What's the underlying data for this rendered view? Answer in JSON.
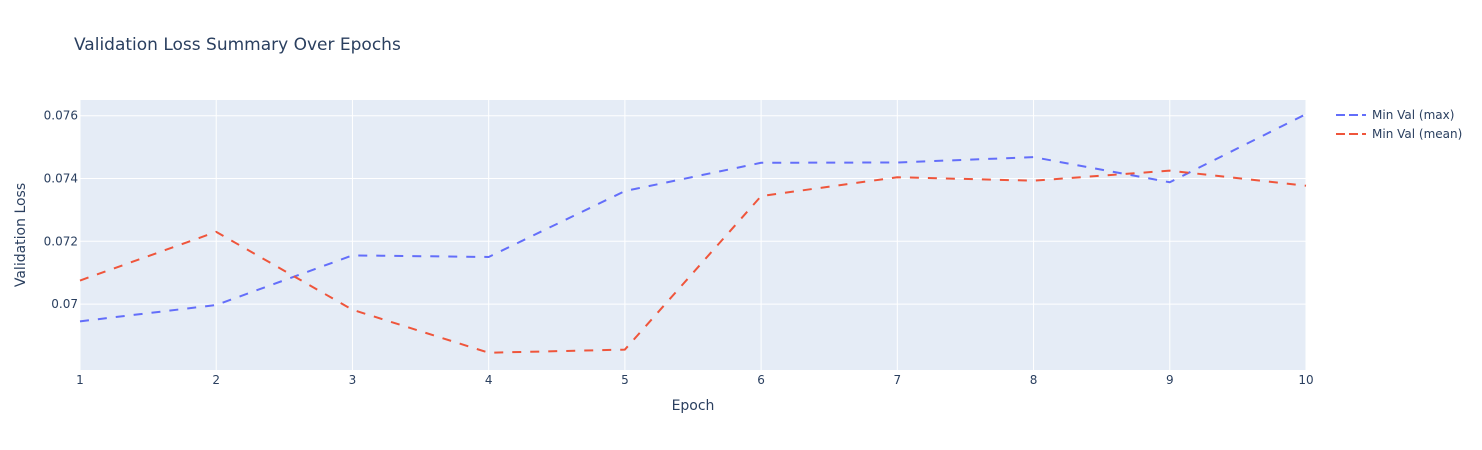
{
  "chart_data": {
    "type": "line",
    "title": "Validation Loss Summary Over Epochs",
    "xlabel": "Epoch",
    "ylabel": "Validation Loss",
    "x": [
      1,
      2,
      3,
      4,
      5,
      6,
      7,
      8,
      9,
      10
    ],
    "xlim": [
      1,
      10
    ],
    "ylim": [
      0.0679,
      0.0765
    ],
    "x_ticks": [
      1,
      2,
      3,
      4,
      5,
      6,
      7,
      8,
      9,
      10
    ],
    "y_ticks": [
      0.07,
      0.072,
      0.074,
      0.076
    ],
    "y_tick_labels": [
      "0.07",
      "0.072",
      "0.074",
      "0.076"
    ],
    "grid": true,
    "legend_position": "top-right",
    "series": [
      {
        "name": "Min Val (max)",
        "color": "#636efa",
        "dash": "dash",
        "values": [
          0.06945,
          0.06997,
          0.07155,
          0.0715,
          0.0736,
          0.0745,
          0.07451,
          0.07468,
          0.07388,
          0.07605
        ]
      },
      {
        "name": "Min Val (mean)",
        "color": "#ef553b",
        "dash": "dash",
        "values": [
          0.07075,
          0.0723,
          0.06982,
          0.06845,
          0.06855,
          0.07344,
          0.07404,
          0.07393,
          0.07425,
          0.07377
        ]
      }
    ]
  }
}
